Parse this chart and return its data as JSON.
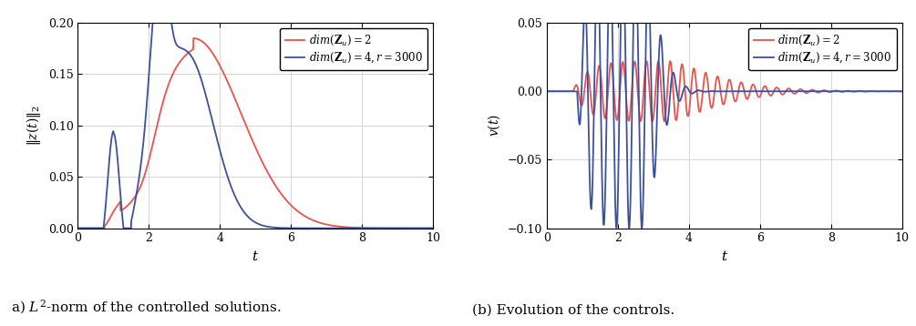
{
  "fig_width": 10.05,
  "fig_height": 3.58,
  "dpi": 100,
  "left_plot": {
    "xlim": [
      0,
      10
    ],
    "ylim": [
      0,
      0.2
    ],
    "xticks": [
      0,
      2,
      4,
      6,
      8,
      10
    ],
    "yticks": [
      0,
      0.05,
      0.1,
      0.15,
      0.2
    ]
  },
  "right_plot": {
    "xlim": [
      0,
      10
    ],
    "ylim": [
      -0.1,
      0.05
    ],
    "xticks": [
      0,
      2,
      4,
      6,
      8,
      10
    ],
    "yticks": [
      -0.1,
      -0.05,
      0,
      0.05
    ]
  },
  "color_red": "#e8534a",
  "color_blue": "#3c50a0",
  "linewidth": 1.3,
  "grid_color": "#d0d0d0",
  "caption_left": "a) $L^2$-norm of the controlled solutions.",
  "caption_right": "(b) Evolution of the controls."
}
